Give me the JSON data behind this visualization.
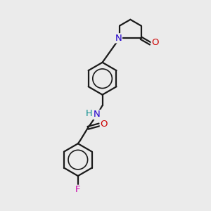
{
  "bg_color": "#ebebeb",
  "bond_color": "#1a1a1a",
  "N_color": "#2200cc",
  "O_color": "#cc0000",
  "F_color": "#cc00aa",
  "H_color": "#008888",
  "line_width": 1.6,
  "figsize": [
    3.0,
    3.0
  ],
  "dpi": 100,
  "xlim": [
    0,
    10
  ],
  "ylim": [
    0,
    10
  ]
}
